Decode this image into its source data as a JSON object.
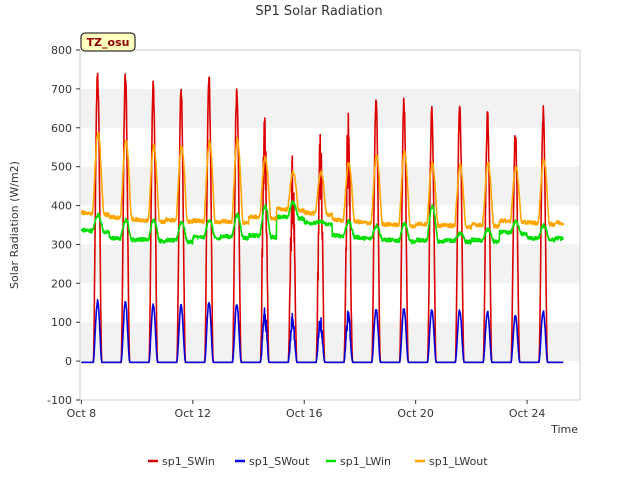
{
  "chart_data": {
    "type": "line",
    "title": "SP1 Solar Radiation",
    "xlabel": "Time",
    "ylabel": "Solar Radiation (W/m2)",
    "badge": "TZ_osu",
    "x_start_day": 8,
    "x_end_day": 25.3,
    "xlim": [
      7.95,
      25.9
    ],
    "ylim": [
      -100,
      800
    ],
    "yticks": [
      -100,
      0,
      100,
      200,
      300,
      400,
      500,
      600,
      700,
      800
    ],
    "xticks": [
      {
        "day": 8,
        "label": "Oct 8"
      },
      {
        "day": 12,
        "label": "Oct 12"
      },
      {
        "day": 16,
        "label": "Oct 16"
      },
      {
        "day": 20,
        "label": "Oct 20"
      },
      {
        "day": 24,
        "label": "Oct 24"
      }
    ],
    "grid": "horizontal-bands",
    "legend_position": "bottom",
    "series": [
      {
        "name": "sp1_SWin",
        "color": "#dd0000",
        "kind": "sw_in",
        "daily_peaks": [
          760,
          750,
          730,
          712,
          745,
          720,
          700,
          535,
          610,
          690,
          688,
          684,
          668,
          680,
          650,
          605,
          658
        ]
      },
      {
        "name": "sp1_SWout",
        "color": "#0000dd",
        "kind": "sw_out",
        "daily_peaks": [
          158,
          155,
          150,
          146,
          155,
          150,
          140,
          130,
          120,
          140,
          138,
          138,
          135,
          135,
          130,
          120,
          132
        ]
      },
      {
        "name": "sp1_LWin",
        "color": "#00dd00",
        "kind": "lw",
        "daily_base": [
          325,
          305,
          302,
          300,
          308,
          310,
          312,
          360,
          345,
          312,
          305,
          300,
          300,
          300,
          300,
          320,
          305
        ],
        "daily_peaks": [
          368,
          355,
          355,
          350,
          355,
          368,
          390,
          400,
          350,
          350,
          340,
          345,
          390,
          320,
          330,
          350,
          340
        ]
      },
      {
        "name": "sp1_LWout",
        "color": "#ffa500",
        "kind": "lw",
        "daily_base": [
          370,
          358,
          352,
          352,
          350,
          348,
          360,
          380,
          370,
          352,
          345,
          340,
          342,
          338,
          340,
          350,
          345
        ],
        "daily_peaks": [
          578,
          558,
          545,
          545,
          555,
          562,
          515,
          478,
          478,
          500,
          520,
          530,
          500,
          495,
          500,
          490,
          510
        ]
      }
    ]
  }
}
